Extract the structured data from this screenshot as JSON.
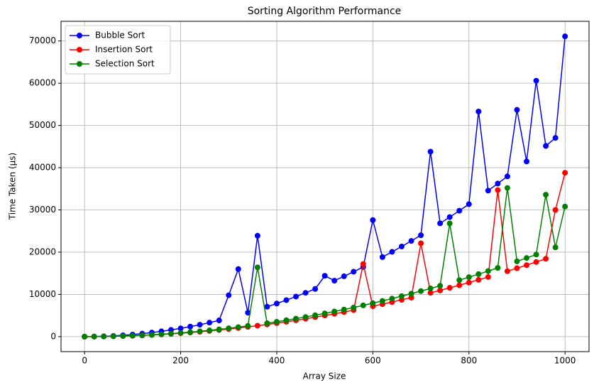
{
  "chart_data": {
    "type": "line",
    "title": "Sorting Algorithm Performance",
    "x_label": "Array Size",
    "y_label": "Time Taken (µs)",
    "x": [
      0,
      20,
      40,
      60,
      80,
      100,
      120,
      140,
      160,
      180,
      200,
      220,
      240,
      260,
      280,
      300,
      320,
      340,
      360,
      380,
      400,
      420,
      440,
      460,
      480,
      500,
      520,
      540,
      560,
      580,
      600,
      620,
      640,
      660,
      680,
      700,
      720,
      740,
      760,
      780,
      800,
      820,
      840,
      860,
      880,
      900,
      920,
      940,
      960,
      980,
      1000
    ],
    "series": [
      {
        "name": "Bubble Sort",
        "color": "#0000ff",
        "values": [
          0,
          20,
          78,
          176,
          314,
          490,
          706,
          960,
          1254,
          1588,
          1960,
          2372,
          2822,
          3312,
          3842,
          9800,
          16000,
          5664,
          23900,
          7076,
          7840,
          8644,
          9486,
          10368,
          11290,
          14400,
          13250,
          14288,
          15366,
          16484,
          27600,
          18836,
          20070,
          21344,
          22658,
          24010,
          43800,
          26832,
          28302,
          29812,
          31360,
          53300,
          34574,
          36240,
          37946,
          53700,
          41474,
          60600,
          45158,
          47060,
          71100
        ]
      },
      {
        "name": "Insertion Sort",
        "color": "#ff0000",
        "values": [
          0,
          8,
          32,
          72,
          128,
          200,
          288,
          392,
          512,
          648,
          800,
          968,
          1152,
          1352,
          1568,
          1800,
          2048,
          2312,
          2592,
          2888,
          3200,
          3528,
          3872,
          4232,
          4608,
          5000,
          5408,
          5832,
          6272,
          17200,
          7200,
          7688,
          8192,
          8712,
          9248,
          22100,
          10368,
          10952,
          11552,
          12168,
          12800,
          13448,
          14112,
          34700,
          15488,
          16200,
          16928,
          17672,
          18432,
          30000,
          38800
        ]
      },
      {
        "name": "Selection Sort",
        "color": "#008000",
        "values": [
          0,
          9,
          35,
          79,
          141,
          220,
          317,
          431,
          563,
          713,
          880,
          1065,
          1267,
          1487,
          1725,
          1980,
          2253,
          2543,
          16400,
          3177,
          3520,
          3881,
          4259,
          4655,
          5069,
          5500,
          5949,
          6415,
          6899,
          7401,
          7920,
          8457,
          9011,
          9583,
          10173,
          10780,
          11405,
          12047,
          26800,
          13385,
          14080,
          14793,
          15523,
          16271,
          35200,
          17820,
          18621,
          19439,
          33600,
          21129,
          30800
        ]
      }
    ],
    "xlim": [
      -48.95,
      1049.95
    ],
    "ylim": [
      -3555,
      74660
    ],
    "xticks": [
      0,
      200,
      400,
      600,
      800,
      1000
    ],
    "yticks": [
      0,
      10000,
      20000,
      30000,
      40000,
      50000,
      60000,
      70000
    ],
    "grid": true,
    "legend": "upper left"
  }
}
